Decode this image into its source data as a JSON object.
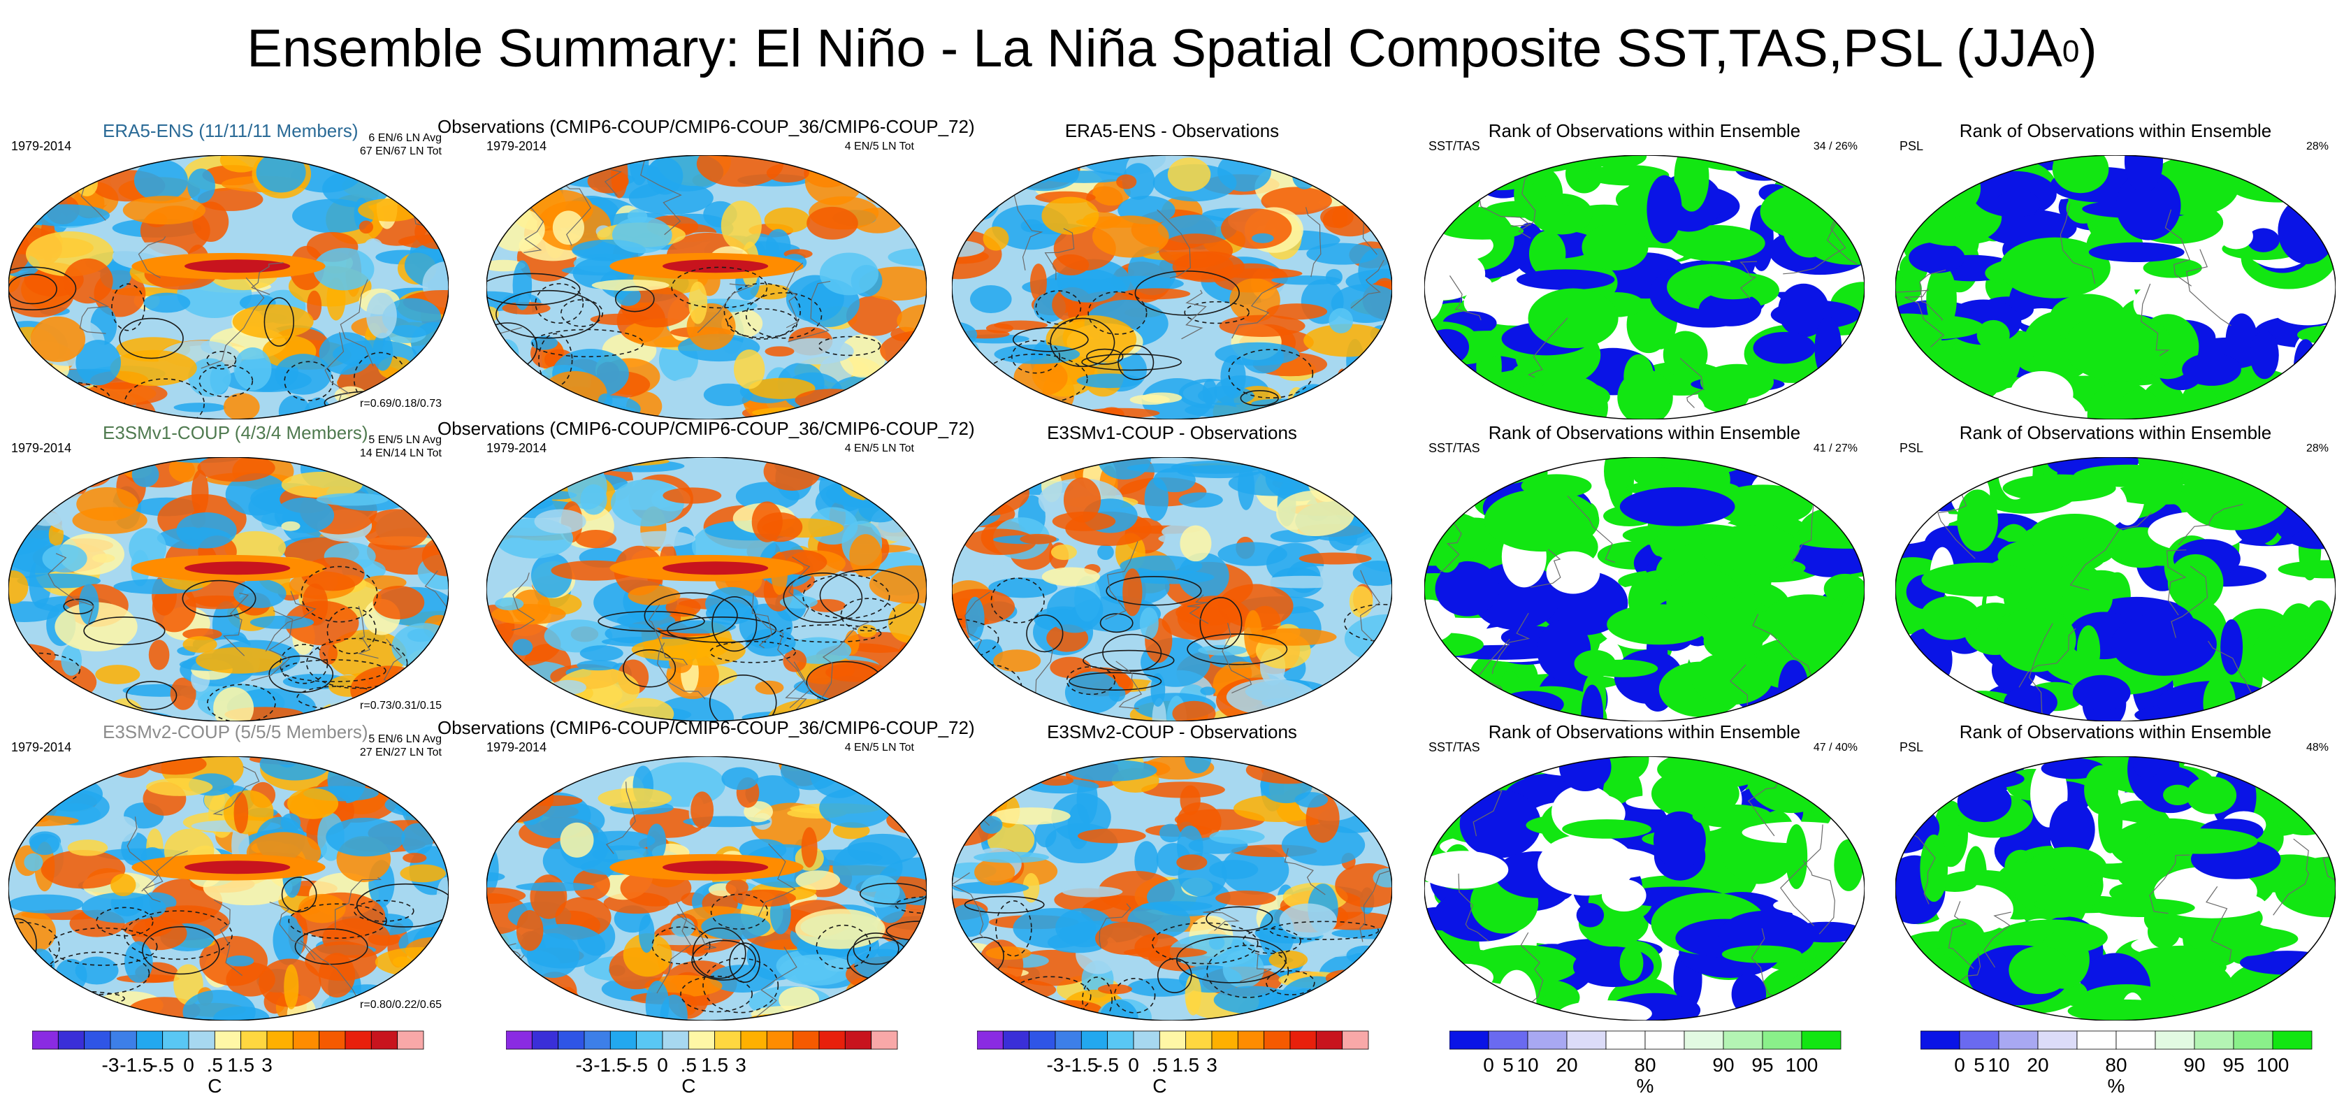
{
  "title": {
    "main": "Ensemble Summary: El Niño - La Niña Spatial Composite SST,TAS,PSL (JJA",
    "sup": "0",
    "close": ")"
  },
  "rows": [
    {
      "model_title": "ERA5-ENS (11/11/11 Members)",
      "model_title_color": "#2a6a96",
      "model_period": "1979-2014",
      "model_stats": [
        "6 EN/6 LN Avg",
        "67 EN/67 LN Tot"
      ],
      "model_corr": "r=0.69/0.18/0.73",
      "obs_title": "Observations (CMIP6-COUP/CMIP6-COUP_36/CMIP6-COUP_72)",
      "obs_period": "1979-2014",
      "obs_stats": "4 EN/5 LN Tot",
      "diff_title": "ERA5-ENS - Observations",
      "rank_title": "Rank of Observations within Ensemble",
      "rank_sst_label": "SST/TAS",
      "rank_sst_value": "34 /  26%",
      "rank_psl_label": "PSL",
      "rank_psl_value": "28%"
    },
    {
      "model_title": "E3SMv1-COUP (4/3/4 Members)",
      "model_title_color": "#4f7a4f",
      "model_period": "1979-2014",
      "model_stats": [
        "5 EN/5 LN Avg",
        "14 EN/14 LN Tot"
      ],
      "model_corr": "r=0.73/0.31/0.15",
      "obs_title": "Observations (CMIP6-COUP/CMIP6-COUP_36/CMIP6-COUP_72)",
      "obs_period": "1979-2014",
      "obs_stats": "4 EN/5 LN Tot",
      "diff_title": "E3SMv1-COUP - Observations",
      "rank_title": "Rank of Observations within Ensemble",
      "rank_sst_label": "SST/TAS",
      "rank_sst_value": "41 /  27%",
      "rank_psl_label": "PSL",
      "rank_psl_value": "28%"
    },
    {
      "model_title": "E3SMv2-COUP (5/5/5 Members)",
      "model_title_color": "#8c8c8c",
      "model_period": "1979-2014",
      "model_stats": [
        "5 EN/6 LN Avg",
        "27 EN/27 LN Tot"
      ],
      "model_corr": "r=0.80/0.22/0.65",
      "obs_title": "Observations (CMIP6-COUP/CMIP6-COUP_36/CMIP6-COUP_72)",
      "obs_period": "1979-2014",
      "obs_stats": "4 EN/5 LN Tot",
      "diff_title": "E3SMv2-COUP - Observations",
      "rank_title": "Rank of Observations within Ensemble",
      "rank_sst_label": "SST/TAS",
      "rank_sst_value": "47 /  40%",
      "rank_psl_label": "PSL",
      "rank_psl_value": "48%"
    }
  ],
  "colorbar_temp": {
    "colors": [
      "#8a2be2",
      "#3a2fd8",
      "#2f55e6",
      "#3d7fe8",
      "#22a8ef",
      "#59c7f4",
      "#a7d8f0",
      "#fff7a6",
      "#ffd740",
      "#ffb000",
      "#ff8c00",
      "#f55a00",
      "#e8200c",
      "#c8141e",
      "#f8a8a8"
    ],
    "ticks": [
      "-3",
      "-1.5",
      "-.5",
      "0",
      ".5",
      "1.5",
      "3"
    ],
    "unit": "C"
  },
  "colorbar_rank": {
    "colors": [
      "#0a14e6",
      "#6a6af0",
      "#a8a8f2",
      "#dcdcf8",
      "#ffffff",
      "#ffffff",
      "#e2fae2",
      "#b4f4b4",
      "#8af08a",
      "#12e612"
    ],
    "ticks": [
      "0",
      "5",
      "10",
      "20",
      "80",
      "90",
      "95",
      "100"
    ],
    "unit": "%"
  },
  "colors": {
    "land_outline": "#6a6a6a",
    "contour": "#1a1a1a",
    "rank_low": "#0a14e6",
    "rank_high": "#12e612"
  }
}
